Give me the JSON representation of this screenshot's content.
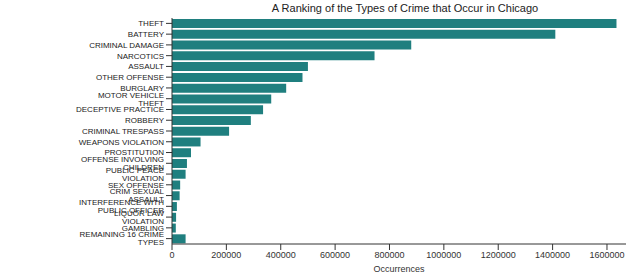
{
  "chart_data": {
    "type": "bar",
    "title": "A Ranking of the Types of Crime that Occur in Chicago",
    "orientation": "horizontal",
    "x_label": "Occurrences",
    "categories": [
      "THEFT",
      "BATTERY",
      "CRIMINAL DAMAGE",
      "NARCOTICS",
      "ASSAULT",
      "OTHER OFFENSE",
      "BURGLARY",
      "MOTOR VEHICLE THEFT",
      "DECEPTIVE PRACTICE",
      "ROBBERY",
      "CRIMINAL TRESPASS",
      "WEAPONS VIOLATION",
      "PROSTITUTION",
      "OFFENSE INVOLVING CHILDREN",
      "PUBLIC PEACE VIOLATION",
      "SEX OFFENSE",
      "CRIM SEXUAL ASSAULT",
      "INTERFERENCE WITH PUBLIC OFFICER",
      "LIQUOR LAW VIOLATION",
      "GAMBLING",
      "REMAINING 16 CRIME TYPES"
    ],
    "values": [
      1635000,
      1410000,
      880000,
      745000,
      500000,
      480000,
      420000,
      365000,
      335000,
      290000,
      210000,
      105000,
      70000,
      55000,
      50000,
      30000,
      28000,
      18000,
      15000,
      14000,
      50000
    ],
    "color": "#1f7f7f",
    "xlim": [
      0,
      1670000
    ],
    "xticks": [
      0,
      200000,
      400000,
      600000,
      800000,
      1000000,
      1200000,
      1400000,
      1600000
    ],
    "grid": false
  }
}
